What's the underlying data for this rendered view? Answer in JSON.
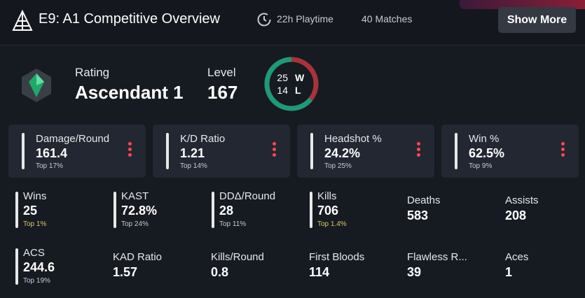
{
  "header": {
    "title": "E9: A1 Competitive Overview",
    "playtime": "22h Playtime",
    "matches": "40 Matches",
    "button": "Show More"
  },
  "rank": {
    "label": "Rating",
    "value": "Ascendant 1"
  },
  "level": {
    "label": "Level",
    "value": "167"
  },
  "record": {
    "wins": 25,
    "wins_label": "W",
    "losses": 14,
    "losses_label": "L"
  },
  "main_stats": [
    {
      "label": "Damage/Round",
      "value": "161.4",
      "top": "Top 17%"
    },
    {
      "label": "K/D Ratio",
      "value": "1.21",
      "top": "Top 14%"
    },
    {
      "label": "Headshot %",
      "value": "24.2%",
      "top": "Top 25%"
    },
    {
      "label": "Win %",
      "value": "62.5%",
      "top": "Top 9%"
    }
  ],
  "stats": [
    [
      {
        "label": "Wins",
        "value": "25",
        "top": "Top 1%",
        "top_color": "#d8c86a"
      },
      {
        "label": "KAST",
        "value": "72.8%",
        "top": "Top 24%",
        "top_color": "#c7cbd1"
      },
      {
        "label": "DDΔ/Round",
        "value": "28",
        "top": "Top 11%",
        "top_color": "#c7cbd1"
      },
      {
        "label": "Kills",
        "value": "706",
        "top": "Top 1.4%",
        "top_color": "#d8c86a"
      },
      {
        "label": "Deaths",
        "value": "583"
      },
      {
        "label": "Assists",
        "value": "208"
      }
    ],
    [
      {
        "label": "ACS",
        "value": "244.6",
        "top": "Top 19%",
        "top_color": "#c7cbd1"
      },
      {
        "label": "KAD Ratio",
        "value": "1.57"
      },
      {
        "label": "Kills/Round",
        "value": "0.8"
      },
      {
        "label": "First Bloods",
        "value": "114"
      },
      {
        "label": "Flawless R...",
        "value": "39"
      },
      {
        "label": "Aces",
        "value": "1"
      }
    ]
  ]
}
